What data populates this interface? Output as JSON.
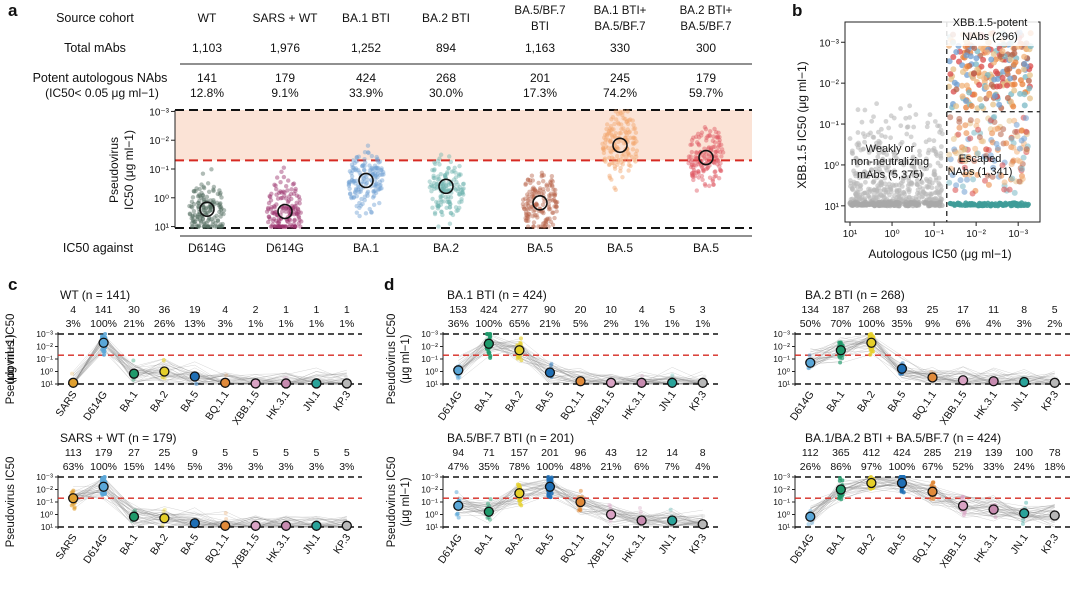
{
  "panel_a": {
    "label": "a",
    "row_labels": {
      "source": "Source cohort",
      "total": "Total mAbs",
      "potent_line1": "Potent autologous NAbs",
      "potent_line2": "(IC50< 0.05 μg ml−1)",
      "against": "IC50 against"
    },
    "y_label_line1": "Pseudovirus",
    "y_label_line2": "IC50 (μg ml−1)",
    "y_ticks": [
      "10⁻³",
      "10⁻²",
      "10⁻¹",
      "10⁰",
      "10¹"
    ],
    "y_tick_exp": [
      -3,
      -2,
      -1,
      0,
      1
    ],
    "cutoff_potent": 0.05,
    "cohorts": [
      {
        "name": "WT",
        "total": "1,103",
        "potent": "141",
        "pct": "12.8%",
        "against": "D614G",
        "median": 2.5,
        "color": "#4f6b5e",
        "name_lines": [
          "WT"
        ]
      },
      {
        "name": "SARS + WT",
        "total": "1,976",
        "potent": "179",
        "pct": "9.1%",
        "against": "D614G",
        "median": 3.0,
        "color": "#9a2f6b",
        "name_lines": [
          "SARS + WT"
        ]
      },
      {
        "name": "BA.1 BTI",
        "total": "1,252",
        "potent": "424",
        "pct": "33.9%",
        "against": "BA.1",
        "median": 0.25,
        "color": "#6f9fd2",
        "name_lines": [
          "BA.1 BTI"
        ]
      },
      {
        "name": "BA.2 BTI",
        "total": "894",
        "potent": "268",
        "pct": "30.0%",
        "against": "BA.2",
        "median": 0.4,
        "color": "#6fb3b0",
        "name_lines": [
          "BA.2 BTI"
        ]
      },
      {
        "name": "BA.5/BF.7 BTI",
        "total": "1,163",
        "potent": "201",
        "pct": "17.3%",
        "against": "BA.5",
        "median": 1.5,
        "color": "#b8644a",
        "name_lines": [
          "BA.5/BF.7",
          "BTI"
        ]
      },
      {
        "name": "BA.1 BTI+ BA.5/BF.7",
        "total": "330",
        "potent": "245",
        "pct": "74.2%",
        "against": "BA.5",
        "median": 0.015,
        "color": "#f2a46a",
        "name_lines": [
          "BA.1 BTI+",
          "BA.5/BF.7"
        ]
      },
      {
        "name": "BA.2 BTI+ BA.5/BF.7",
        "total": "300",
        "potent": "179",
        "pct": "59.7%",
        "against": "BA.5",
        "median": 0.04,
        "color": "#dd5560",
        "name_lines": [
          "BA.2 BTI+",
          "BA.5/BF.7"
        ]
      }
    ]
  },
  "panel_b": {
    "label": "b",
    "xlabel": "Autologous IC50 (μg ml−1)",
    "ylabel": "XBB.1.5 IC50 (μg ml−1)",
    "x_ticks": [
      "10¹",
      "10⁰",
      "10⁻¹",
      "10⁻²",
      "10⁻³"
    ],
    "y_ticks": [
      "10⁻³",
      "10⁻²",
      "10⁻¹",
      "10⁰",
      "10¹"
    ],
    "threshold": 0.05,
    "annotations": {
      "potent_line1": "XBB.1.5-potent",
      "potent_line2": "NAbs (296)",
      "weak_line1": "Weakly or",
      "weak_line2": "non-neutralizing",
      "weak_line3": "mAbs (5,375)",
      "escaped_line1": "Escaped",
      "escaped_line2": "NAbs (1,341)"
    }
  },
  "panel_c_label": "c",
  "panel_d_label": "d",
  "strip_y_ticks": [
    "10⁻³",
    "10⁻²",
    "10⁻¹",
    "10⁰",
    "10¹"
  ],
  "strip_ylabel_line1": "Pseudovirus IC50",
  "strip_ylabel_line2": "(μg ml−1)",
  "variant_colors": {
    "SARS": "#e0a030",
    "D614G": "#5aa7d8",
    "BA.1": "#1f9a6b",
    "BA.2": "#e5cf2a",
    "BA.5": "#1f6fb5",
    "BQ.1.1": "#e08a3a",
    "XBB.1.5": "#d9a3c4",
    "HK.3.1": "#c78bb0",
    "JN.1": "#2aa39a",
    "KP.3": "#b8b8b8"
  },
  "small_panels": [
    {
      "id": "c1",
      "title": "WT (n = 141)",
      "variants": [
        "SARS",
        "D614G",
        "BA.1",
        "BA.2",
        "BA.5",
        "BQ.1.1",
        "XBB.1.5",
        "HK.3.1",
        "JN.1",
        "KP.3"
      ],
      "counts": [
        "4",
        "141",
        "30",
        "36",
        "19",
        "4",
        "2",
        "1",
        "1",
        "1"
      ],
      "pcts": [
        "3%",
        "100%",
        "21%",
        "26%",
        "13%",
        "3%",
        "1%",
        "1%",
        "1%",
        "1%"
      ],
      "medians": [
        8,
        0.005,
        1.5,
        1.0,
        2.5,
        8,
        9,
        9,
        9,
        9
      ]
    },
    {
      "id": "c2",
      "title": "SARS + WT (n = 179)",
      "variants": [
        "SARS",
        "D614G",
        "BA.1",
        "BA.2",
        "BA.5",
        "BQ.1.1",
        "XBB.1.5",
        "HK.3.1",
        "JN.1",
        "KP.3"
      ],
      "counts": [
        "113",
        "179",
        "27",
        "25",
        "9",
        "5",
        "5",
        "5",
        "5",
        "5"
      ],
      "pcts": [
        "63%",
        "100%",
        "15%",
        "14%",
        "5%",
        "3%",
        "3%",
        "3%",
        "3%",
        "3%"
      ],
      "medians": [
        0.05,
        0.006,
        1.5,
        2.0,
        5,
        8,
        8,
        8,
        8,
        8
      ]
    },
    {
      "id": "d1",
      "title": "BA.1 BTI (n = 424)",
      "variants": [
        "D614G",
        "BA.1",
        "BA.2",
        "BA.5",
        "BQ.1.1",
        "XBB.1.5",
        "HK.3.1",
        "JN.1",
        "KP.3"
      ],
      "counts": [
        "153",
        "424",
        "277",
        "90",
        "20",
        "10",
        "4",
        "5",
        "3"
      ],
      "pcts": [
        "36%",
        "100%",
        "65%",
        "21%",
        "5%",
        "2%",
        "1%",
        "1%",
        "1%"
      ],
      "medians": [
        0.8,
        0.006,
        0.02,
        1.2,
        6,
        8,
        8,
        8,
        8
      ]
    },
    {
      "id": "d2",
      "title": "BA.2 BTI (n = 268)",
      "variants": [
        "D614G",
        "BA.1",
        "BA.2",
        "BA.5",
        "BQ.1.1",
        "XBB.1.5",
        "HK.3.1",
        "JN.1",
        "KP.3"
      ],
      "counts": [
        "134",
        "187",
        "268",
        "93",
        "25",
        "17",
        "11",
        "8",
        "5"
      ],
      "pcts": [
        "50%",
        "70%",
        "100%",
        "35%",
        "9%",
        "6%",
        "4%",
        "3%",
        "2%"
      ],
      "medians": [
        0.2,
        0.02,
        0.005,
        0.6,
        3,
        5,
        6,
        7,
        8
      ]
    },
    {
      "id": "d3",
      "title": "BA.5/BF.7 BTI (n = 201)",
      "variants": [
        "D614G",
        "BA.1",
        "BA.2",
        "BA.5",
        "BQ.1.1",
        "XBB.1.5",
        "HK.3.1",
        "JN.1",
        "KP.3"
      ],
      "counts": [
        "94",
        "71",
        "157",
        "201",
        "96",
        "43",
        "12",
        "14",
        "8"
      ],
      "pcts": [
        "47%",
        "35%",
        "78%",
        "100%",
        "48%",
        "21%",
        "6%",
        "7%",
        "4%"
      ],
      "medians": [
        0.2,
        0.6,
        0.02,
        0.006,
        0.1,
        1,
        3,
        3,
        6
      ]
    },
    {
      "id": "d4",
      "title": "BA.1/BA.2 BTI + BA.5/BF.7 (n = 424)",
      "variants": [
        "D614G",
        "BA.1",
        "BA.2",
        "BA.5",
        "BQ.1.1",
        "XBB.1.5",
        "HK.3.1",
        "JN.1",
        "KP.3"
      ],
      "counts": [
        "112",
        "365",
        "412",
        "424",
        "285",
        "219",
        "139",
        "100",
        "78"
      ],
      "pcts": [
        "26%",
        "86%",
        "97%",
        "100%",
        "67%",
        "52%",
        "33%",
        "24%",
        "18%"
      ],
      "medians": [
        1.5,
        0.01,
        0.003,
        0.003,
        0.015,
        0.2,
        0.4,
        0.8,
        1.2
      ]
    }
  ]
}
